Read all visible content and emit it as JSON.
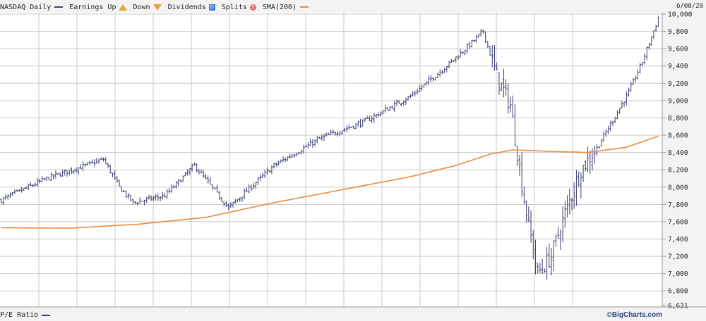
{
  "legend": {
    "symbol_label": "NASDAQ Daily",
    "earnings_label": "Earnings",
    "up_label": "Up",
    "down_label": "Down",
    "dividends_label": "Dividends",
    "dividends_glyph": "D",
    "splits_label": "Splits",
    "splits_glyph": "S",
    "sma_label": "SMA(200)"
  },
  "colors": {
    "price_bars": "#3c3f73",
    "sma": "#f0883a",
    "grid": "#c9c9c9",
    "background": "#ffffff",
    "earnings_marker": "#e8a33a",
    "dividend_marker": "#3b7fe0",
    "split_marker": "#e06a6a"
  },
  "date_label": "6/08/20",
  "bottom_panel_label": "P/E Ratio",
  "branding": "©BigCharts.com",
  "chart_data": {
    "type": "ohlc",
    "series_name": "NASDAQ Daily",
    "y_axis_ticks": [
      "10,000",
      "9,800",
      "9,600",
      "9,400",
      "9,200",
      "9,000",
      "8,800",
      "8,600",
      "8,400",
      "8,200",
      "8,000",
      "7,800",
      "7,600",
      "7,400",
      "7,200",
      "7,000",
      "6,800",
      "6,631"
    ],
    "ylim": [
      6631,
      10000
    ],
    "y_axis_position": "right",
    "grid": true,
    "approx_bar_count": 290,
    "close_anchors": [
      {
        "bar": 0,
        "close": 7850
      },
      {
        "bar": 20,
        "close": 8100
      },
      {
        "bar": 45,
        "close": 8320
      },
      {
        "bar": 52,
        "close": 8000
      },
      {
        "bar": 58,
        "close": 7820
      },
      {
        "bar": 72,
        "close": 7900
      },
      {
        "bar": 85,
        "close": 8250
      },
      {
        "bar": 100,
        "close": 7760
      },
      {
        "bar": 120,
        "close": 8250
      },
      {
        "bar": 140,
        "close": 8560
      },
      {
        "bar": 160,
        "close": 8760
      },
      {
        "bar": 180,
        "close": 9050
      },
      {
        "bar": 195,
        "close": 9380
      },
      {
        "bar": 205,
        "close": 9620
      },
      {
        "bar": 212,
        "close": 9800
      },
      {
        "bar": 218,
        "close": 9280
      },
      {
        "bar": 224,
        "close": 8950
      },
      {
        "bar": 230,
        "close": 7850
      },
      {
        "bar": 236,
        "close": 7000
      },
      {
        "bar": 242,
        "close": 7200
      },
      {
        "bar": 248,
        "close": 7700
      },
      {
        "bar": 255,
        "close": 8200
      },
      {
        "bar": 262,
        "close": 8450
      },
      {
        "bar": 270,
        "close": 8820
      },
      {
        "bar": 276,
        "close": 9100
      },
      {
        "bar": 282,
        "close": 9450
      },
      {
        "bar": 289,
        "close": 9950
      }
    ],
    "sma200": [
      {
        "bar": 0,
        "value": 7530
      },
      {
        "bar": 30,
        "value": 7525
      },
      {
        "bar": 60,
        "value": 7570
      },
      {
        "bar": 90,
        "value": 7650
      },
      {
        "bar": 120,
        "value": 7820
      },
      {
        "bar": 150,
        "value": 7970
      },
      {
        "bar": 180,
        "value": 8120
      },
      {
        "bar": 200,
        "value": 8250
      },
      {
        "bar": 215,
        "value": 8380
      },
      {
        "bar": 225,
        "value": 8430
      },
      {
        "bar": 245,
        "value": 8410
      },
      {
        "bar": 258,
        "value": 8400
      },
      {
        "bar": 275,
        "value": 8460
      },
      {
        "bar": 289,
        "value": 8590
      }
    ]
  }
}
